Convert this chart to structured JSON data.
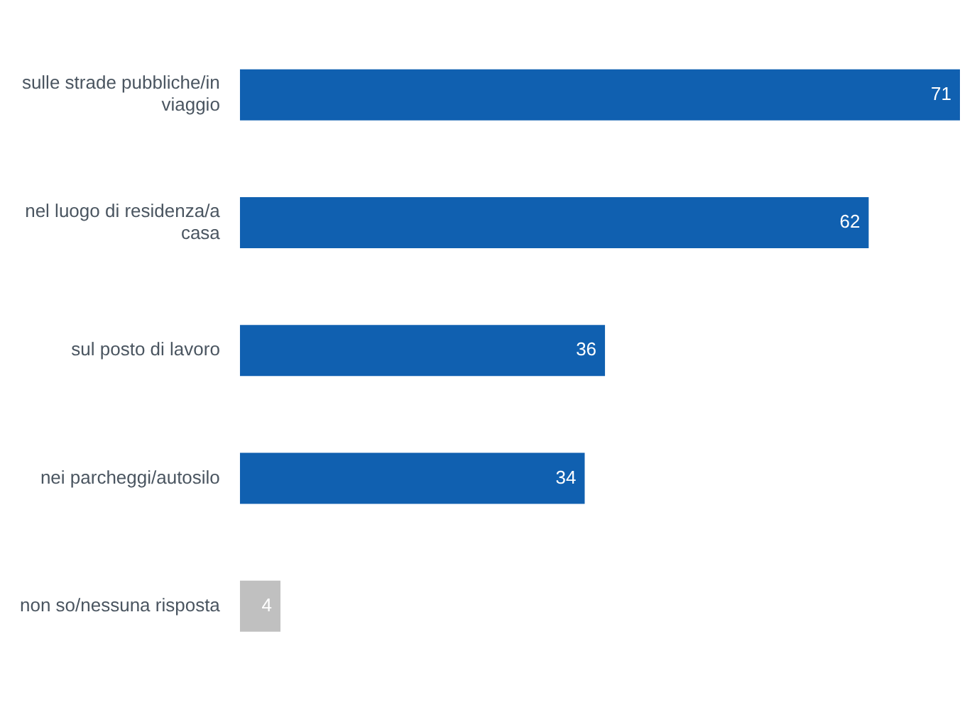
{
  "chart_data": {
    "type": "bar",
    "orientation": "horizontal",
    "categories": [
      "sulle strade pubbliche/in viaggio",
      "nel luogo di residenza/a casa",
      "sul posto di lavoro",
      "nei parcheggi/autosilo",
      "non so/nessuna risposta"
    ],
    "values": [
      71,
      62,
      36,
      34,
      4
    ],
    "colors": [
      "#1060b0",
      "#1060b0",
      "#1060b0",
      "#1060b0",
      "#c0c0c0"
    ],
    "data_labels": true,
    "grid": false,
    "legend": false
  }
}
